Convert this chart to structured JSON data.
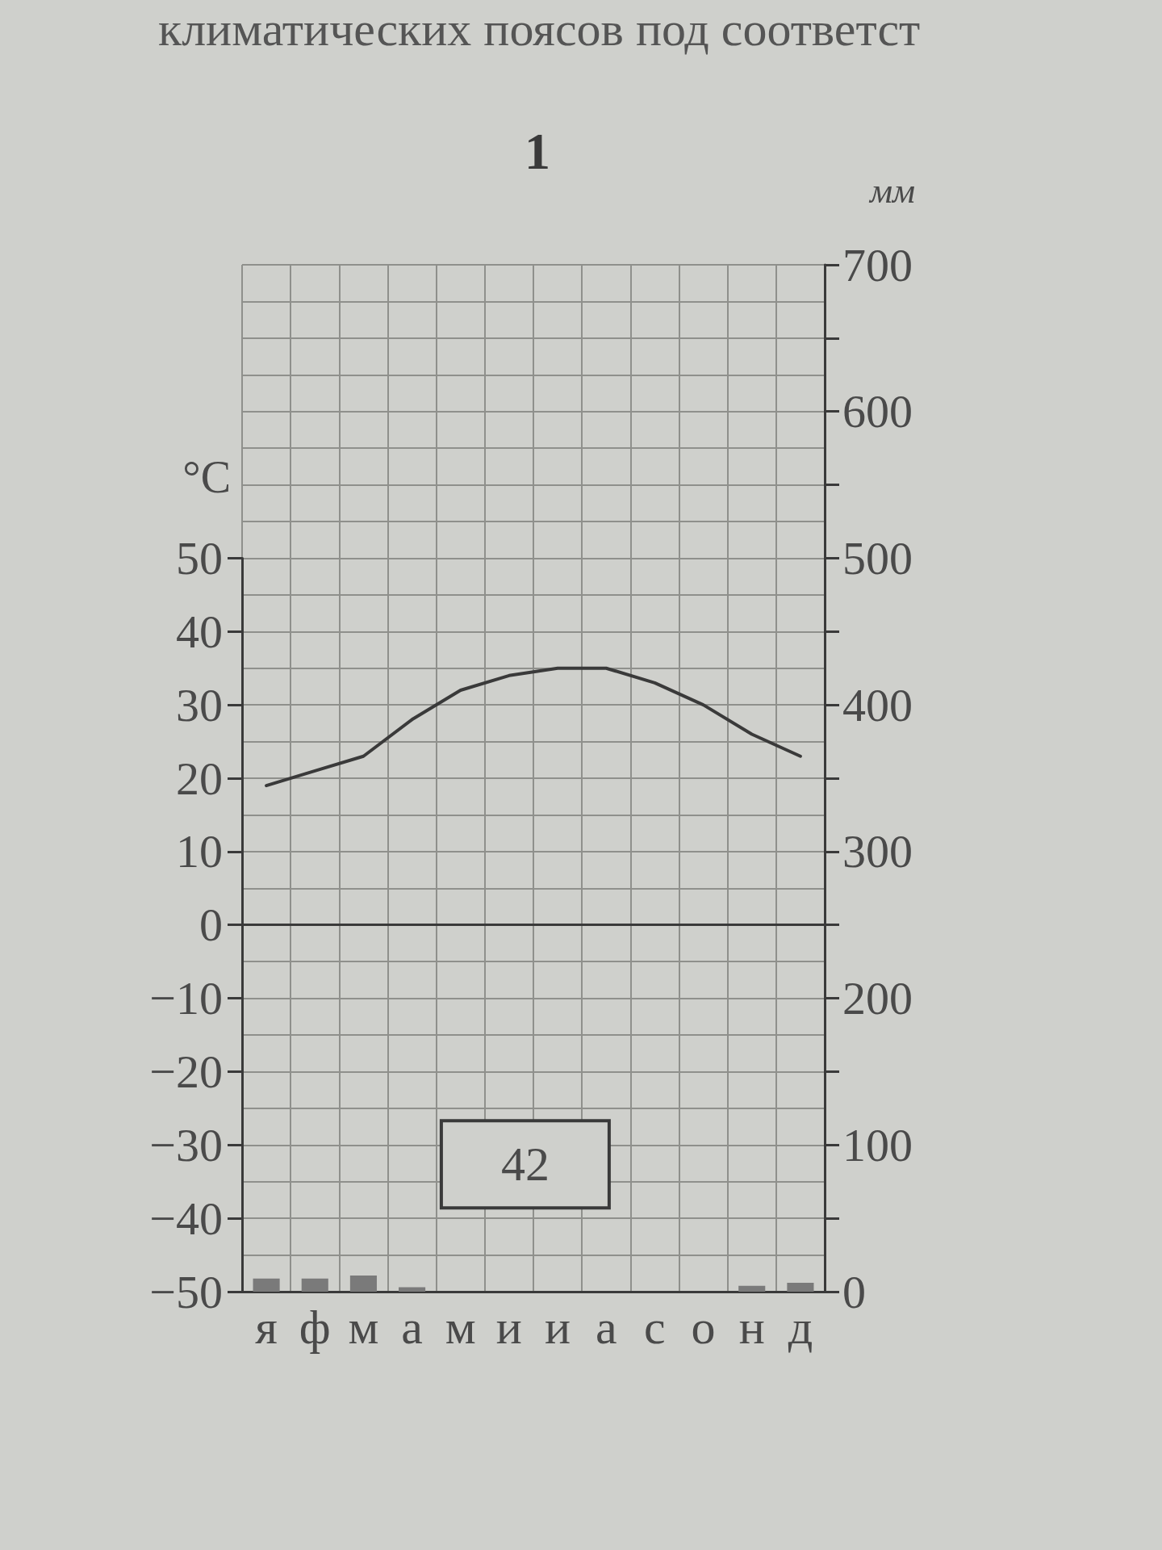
{
  "chart_data": {
    "type": "line",
    "title": "1",
    "ylabel": "°C",
    "y2label": "мм",
    "categories": [
      "я",
      "ф",
      "м",
      "а",
      "м",
      "и",
      "и",
      "а",
      "с",
      "о",
      "н",
      "д"
    ],
    "series": [
      {
        "color": "#3a3a3a",
        "values": [
          19,
          21,
          23,
          28,
          32,
          34,
          35,
          35,
          33,
          30,
          26,
          23
        ]
      },
      {
        "type": "bar",
        "axis": "y2",
        "color": "#7a7a7a",
        "values": [
          9,
          9,
          11,
          3,
          0,
          0,
          0,
          0,
          0,
          0,
          4,
          6
        ]
      }
    ],
    "ylim": [
      -50,
      50
    ],
    "yticks": [
      {
        "value": -50,
        "label": "−50"
      },
      {
        "value": -40,
        "label": "−40"
      },
      {
        "value": -30,
        "label": "−30"
      },
      {
        "value": -20,
        "label": "−20"
      },
      {
        "value": -10,
        "label": "−10"
      },
      0,
      10,
      20,
      30,
      40,
      50
    ],
    "y2lim": [
      0,
      700
    ],
    "y2ticks": [
      0,
      {
        "value": 50,
        "label": null
      },
      100,
      {
        "value": 150,
        "label": null
      },
      200,
      {
        "value": 250,
        "label": null
      },
      300,
      {
        "value": 350,
        "label": null
      },
      400,
      {
        "value": 450,
        "label": null
      },
      500,
      {
        "value": 550,
        "label": null
      },
      600,
      {
        "value": 650,
        "label": null
      },
      700
    ],
    "grid": true,
    "marker": "none",
    "line_style": "solid",
    "ref_lines": [
      {
        "axis": "y",
        "value": 0,
        "color": "#3a3a3a"
      }
    ],
    "annotations": [
      "климатических поясов под соответст",
      "42"
    ]
  }
}
